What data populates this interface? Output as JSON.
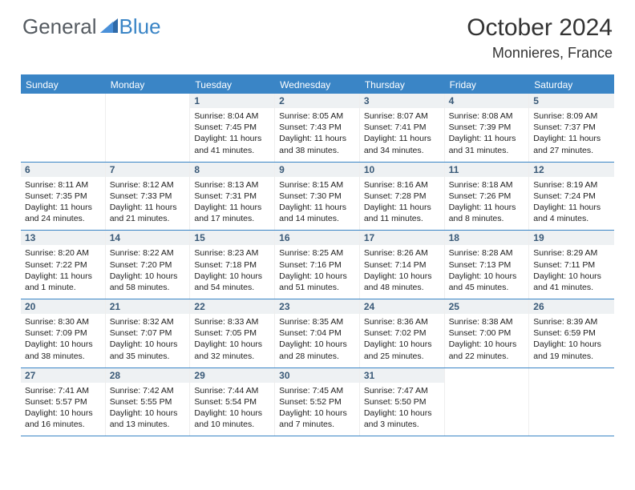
{
  "brand": {
    "part1": "General",
    "part2": "Blue"
  },
  "title": "October 2024",
  "location": "Monnieres, France",
  "colors": {
    "accent": "#3a85c6",
    "daynum_bg": "#eef1f3",
    "daynum_fg": "#3a5a78",
    "text": "#222222",
    "logo_gray": "#555b61"
  },
  "day_names": [
    "Sunday",
    "Monday",
    "Tuesday",
    "Wednesday",
    "Thursday",
    "Friday",
    "Saturday"
  ],
  "weeks": [
    [
      null,
      null,
      {
        "n": "1",
        "sr": "Sunrise: 8:04 AM",
        "ss": "Sunset: 7:45 PM",
        "d1": "Daylight: 11 hours",
        "d2": "and 41 minutes."
      },
      {
        "n": "2",
        "sr": "Sunrise: 8:05 AM",
        "ss": "Sunset: 7:43 PM",
        "d1": "Daylight: 11 hours",
        "d2": "and 38 minutes."
      },
      {
        "n": "3",
        "sr": "Sunrise: 8:07 AM",
        "ss": "Sunset: 7:41 PM",
        "d1": "Daylight: 11 hours",
        "d2": "and 34 minutes."
      },
      {
        "n": "4",
        "sr": "Sunrise: 8:08 AM",
        "ss": "Sunset: 7:39 PM",
        "d1": "Daylight: 11 hours",
        "d2": "and 31 minutes."
      },
      {
        "n": "5",
        "sr": "Sunrise: 8:09 AM",
        "ss": "Sunset: 7:37 PM",
        "d1": "Daylight: 11 hours",
        "d2": "and 27 minutes."
      }
    ],
    [
      {
        "n": "6",
        "sr": "Sunrise: 8:11 AM",
        "ss": "Sunset: 7:35 PM",
        "d1": "Daylight: 11 hours",
        "d2": "and 24 minutes."
      },
      {
        "n": "7",
        "sr": "Sunrise: 8:12 AM",
        "ss": "Sunset: 7:33 PM",
        "d1": "Daylight: 11 hours",
        "d2": "and 21 minutes."
      },
      {
        "n": "8",
        "sr": "Sunrise: 8:13 AM",
        "ss": "Sunset: 7:31 PM",
        "d1": "Daylight: 11 hours",
        "d2": "and 17 minutes."
      },
      {
        "n": "9",
        "sr": "Sunrise: 8:15 AM",
        "ss": "Sunset: 7:30 PM",
        "d1": "Daylight: 11 hours",
        "d2": "and 14 minutes."
      },
      {
        "n": "10",
        "sr": "Sunrise: 8:16 AM",
        "ss": "Sunset: 7:28 PM",
        "d1": "Daylight: 11 hours",
        "d2": "and 11 minutes."
      },
      {
        "n": "11",
        "sr": "Sunrise: 8:18 AM",
        "ss": "Sunset: 7:26 PM",
        "d1": "Daylight: 11 hours",
        "d2": "and 8 minutes."
      },
      {
        "n": "12",
        "sr": "Sunrise: 8:19 AM",
        "ss": "Sunset: 7:24 PM",
        "d1": "Daylight: 11 hours",
        "d2": "and 4 minutes."
      }
    ],
    [
      {
        "n": "13",
        "sr": "Sunrise: 8:20 AM",
        "ss": "Sunset: 7:22 PM",
        "d1": "Daylight: 11 hours",
        "d2": "and 1 minute."
      },
      {
        "n": "14",
        "sr": "Sunrise: 8:22 AM",
        "ss": "Sunset: 7:20 PM",
        "d1": "Daylight: 10 hours",
        "d2": "and 58 minutes."
      },
      {
        "n": "15",
        "sr": "Sunrise: 8:23 AM",
        "ss": "Sunset: 7:18 PM",
        "d1": "Daylight: 10 hours",
        "d2": "and 54 minutes."
      },
      {
        "n": "16",
        "sr": "Sunrise: 8:25 AM",
        "ss": "Sunset: 7:16 PM",
        "d1": "Daylight: 10 hours",
        "d2": "and 51 minutes."
      },
      {
        "n": "17",
        "sr": "Sunrise: 8:26 AM",
        "ss": "Sunset: 7:14 PM",
        "d1": "Daylight: 10 hours",
        "d2": "and 48 minutes."
      },
      {
        "n": "18",
        "sr": "Sunrise: 8:28 AM",
        "ss": "Sunset: 7:13 PM",
        "d1": "Daylight: 10 hours",
        "d2": "and 45 minutes."
      },
      {
        "n": "19",
        "sr": "Sunrise: 8:29 AM",
        "ss": "Sunset: 7:11 PM",
        "d1": "Daylight: 10 hours",
        "d2": "and 41 minutes."
      }
    ],
    [
      {
        "n": "20",
        "sr": "Sunrise: 8:30 AM",
        "ss": "Sunset: 7:09 PM",
        "d1": "Daylight: 10 hours",
        "d2": "and 38 minutes."
      },
      {
        "n": "21",
        "sr": "Sunrise: 8:32 AM",
        "ss": "Sunset: 7:07 PM",
        "d1": "Daylight: 10 hours",
        "d2": "and 35 minutes."
      },
      {
        "n": "22",
        "sr": "Sunrise: 8:33 AM",
        "ss": "Sunset: 7:05 PM",
        "d1": "Daylight: 10 hours",
        "d2": "and 32 minutes."
      },
      {
        "n": "23",
        "sr": "Sunrise: 8:35 AM",
        "ss": "Sunset: 7:04 PM",
        "d1": "Daylight: 10 hours",
        "d2": "and 28 minutes."
      },
      {
        "n": "24",
        "sr": "Sunrise: 8:36 AM",
        "ss": "Sunset: 7:02 PM",
        "d1": "Daylight: 10 hours",
        "d2": "and 25 minutes."
      },
      {
        "n": "25",
        "sr": "Sunrise: 8:38 AM",
        "ss": "Sunset: 7:00 PM",
        "d1": "Daylight: 10 hours",
        "d2": "and 22 minutes."
      },
      {
        "n": "26",
        "sr": "Sunrise: 8:39 AM",
        "ss": "Sunset: 6:59 PM",
        "d1": "Daylight: 10 hours",
        "d2": "and 19 minutes."
      }
    ],
    [
      {
        "n": "27",
        "sr": "Sunrise: 7:41 AM",
        "ss": "Sunset: 5:57 PM",
        "d1": "Daylight: 10 hours",
        "d2": "and 16 minutes."
      },
      {
        "n": "28",
        "sr": "Sunrise: 7:42 AM",
        "ss": "Sunset: 5:55 PM",
        "d1": "Daylight: 10 hours",
        "d2": "and 13 minutes."
      },
      {
        "n": "29",
        "sr": "Sunrise: 7:44 AM",
        "ss": "Sunset: 5:54 PM",
        "d1": "Daylight: 10 hours",
        "d2": "and 10 minutes."
      },
      {
        "n": "30",
        "sr": "Sunrise: 7:45 AM",
        "ss": "Sunset: 5:52 PM",
        "d1": "Daylight: 10 hours",
        "d2": "and 7 minutes."
      },
      {
        "n": "31",
        "sr": "Sunrise: 7:47 AM",
        "ss": "Sunset: 5:50 PM",
        "d1": "Daylight: 10 hours",
        "d2": "and 3 minutes."
      },
      null,
      null
    ]
  ]
}
